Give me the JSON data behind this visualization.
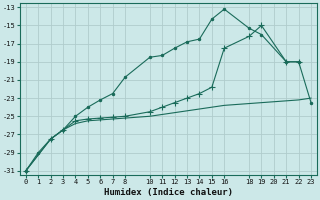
{
  "bg_color": "#cce8e8",
  "grid_color": "#b0cccc",
  "line_color": "#1a6b5a",
  "xlim": [
    -0.5,
    23.5
  ],
  "ylim": [
    -31.5,
    -12.5
  ],
  "xticks": [
    0,
    1,
    2,
    3,
    4,
    5,
    6,
    7,
    8,
    10,
    11,
    12,
    13,
    14,
    15,
    16,
    18,
    19,
    20,
    21,
    22,
    23
  ],
  "yticks": [
    -31,
    -29,
    -27,
    -25,
    -23,
    -21,
    -19,
    -17,
    -15,
    -13
  ],
  "xlabel": "Humidex (Indice chaleur)",
  "curve1_x": [
    0,
    1,
    2,
    3,
    4,
    5,
    6,
    7,
    8,
    10,
    11,
    12,
    13,
    14,
    15,
    16,
    18,
    19,
    21,
    22,
    23
  ],
  "curve1_y": [
    -31,
    -29,
    -27.5,
    -26.5,
    -25,
    -24,
    -23.2,
    -22.5,
    -20.7,
    -18.5,
    -18.3,
    -17.5,
    -16.8,
    -16.5,
    -14.3,
    -13.2,
    -15.3,
    -16,
    -19,
    -19,
    -23.5
  ],
  "curve2_x": [
    0,
    2,
    3,
    4,
    5,
    6,
    7,
    8,
    10,
    11,
    12,
    13,
    14,
    15,
    16,
    18,
    19,
    21,
    22
  ],
  "curve2_y": [
    -31,
    -27.5,
    -26.5,
    -25.5,
    -25.3,
    -25.2,
    -25.1,
    -25.0,
    -24.5,
    -24.0,
    -23.5,
    -23.0,
    -22.5,
    -21.8,
    -17.5,
    -16.2,
    -15.0,
    -19.0,
    -19.0
  ],
  "curve3_x": [
    0,
    2,
    3,
    4,
    5,
    6,
    7,
    8,
    10,
    11,
    12,
    13,
    14,
    15,
    16,
    17,
    18,
    19,
    20,
    21,
    22,
    23
  ],
  "curve3_y": [
    -31,
    -27.5,
    -26.5,
    -25.8,
    -25.5,
    -25.4,
    -25.3,
    -25.2,
    -25.0,
    -24.8,
    -24.6,
    -24.4,
    -24.2,
    -24.0,
    -23.8,
    -23.7,
    -23.6,
    -23.5,
    -23.4,
    -23.3,
    -23.2,
    -23.0
  ]
}
